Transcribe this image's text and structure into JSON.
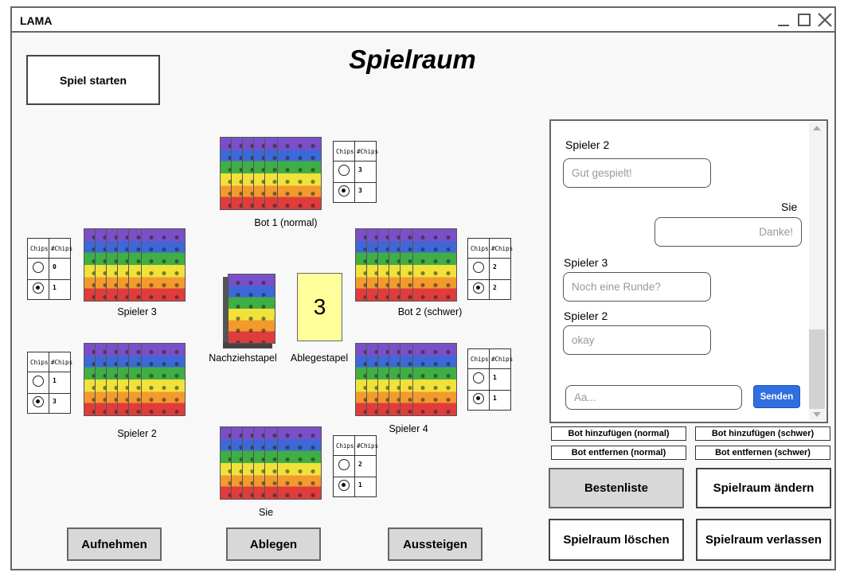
{
  "window": {
    "title": "LAMA"
  },
  "heading": "Spielraum",
  "buttons": {
    "start": "Spiel starten",
    "aufnehmen": "Aufnehmen",
    "ablegen": "Ablegen",
    "aussteigen": "Aussteigen",
    "bestenliste": "Bestenliste",
    "aendern": "Spielraum ändern",
    "loeschen": "Spielraum löschen",
    "verlassen": "Spielraum verlassen",
    "bot_add_normal": "Bot hinzufügen (normal)",
    "bot_add_hard": "Bot hinzufügen (schwer)",
    "bot_remove_normal": "Bot entfernen (normal)",
    "bot_remove_hard": "Bot entfernen (schwer)"
  },
  "chips_headers": {
    "chips": "Chips",
    "count": "#Chips"
  },
  "players": {
    "bot1": {
      "name": "Bot 1 (normal)",
      "chip_values": [
        "3",
        "3"
      ],
      "selected": 2
    },
    "bot2": {
      "name": "Bot 2 (schwer)",
      "chip_values": [
        "2",
        "2"
      ],
      "selected": 2
    },
    "spieler3": {
      "name": "Spieler 3",
      "chip_values": [
        "0",
        "1"
      ],
      "selected": 2
    },
    "spieler2": {
      "name": "Spieler 2",
      "chip_values": [
        "1",
        "3"
      ],
      "selected": 2
    },
    "spieler4": {
      "name": "Spieler 4",
      "chip_values": [
        "1",
        "1"
      ],
      "selected": 2
    },
    "sie": {
      "name": "Sie",
      "chip_values": [
        "2",
        "1"
      ],
      "selected": 2
    }
  },
  "center": {
    "draw_pile_label": "Nachziehstapel",
    "discard_pile_label": "Ablegestapel",
    "discard_value": "3"
  },
  "chat": {
    "messages": [
      {
        "sender": "Spieler 2",
        "text": "Gut gespielt!"
      },
      {
        "sender": "Sie",
        "text": "Danke!"
      },
      {
        "sender": "Spieler 3",
        "text": "Noch eine Runde?"
      },
      {
        "sender": "Spieler 2",
        "text": "okay"
      }
    ],
    "input_placeholder": "Aa...",
    "send_label": "Senden"
  },
  "colors": {
    "send_button": "#2f6fde",
    "discard_card": "#ffff9c",
    "secondary_button": "#d8d8d8"
  }
}
